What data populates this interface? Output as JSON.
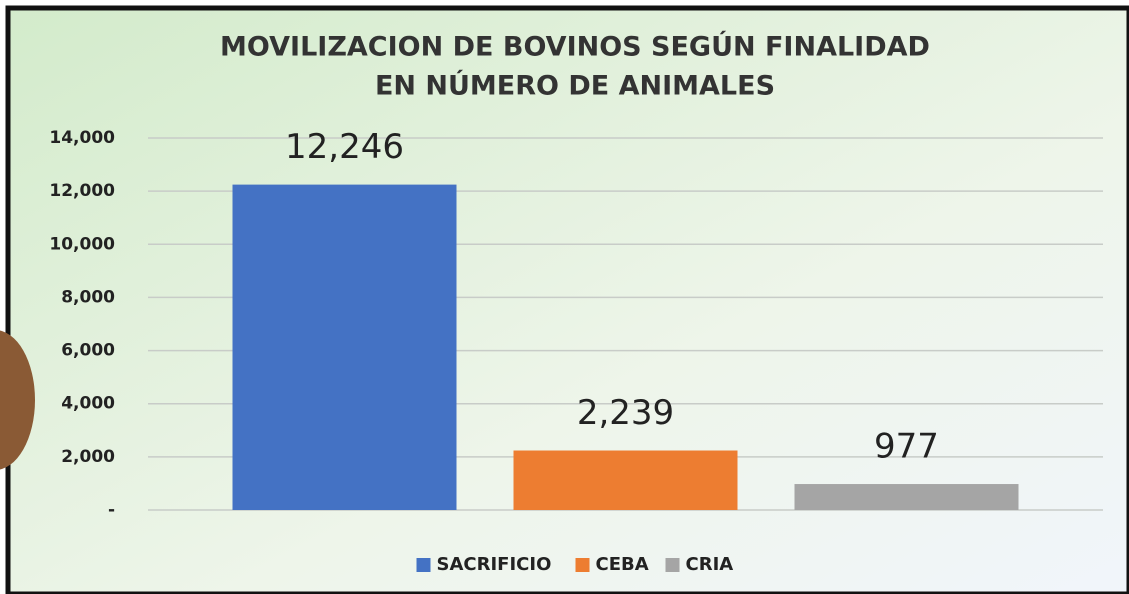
{
  "chart_data": {
    "type": "bar",
    "title": [
      "MOVILIZACION DE BOVINOS SEGÚN FINALIDAD",
      "EN NÚMERO DE ANIMALES"
    ],
    "categories": [
      null
    ],
    "series": [
      {
        "name": "SACRIFICIO",
        "color": "#4472c4",
        "values": [
          12246
        ],
        "value_labels": [
          "12,246"
        ]
      },
      {
        "name": "CEBA",
        "color": "#ed7d31",
        "values": [
          2239
        ],
        "value_labels": [
          "2,239"
        ]
      },
      {
        "name": "CRIA",
        "color": "#a5a5a5",
        "values": [
          977
        ],
        "value_labels": [
          "977"
        ]
      }
    ],
    "ylim": [
      0,
      14000
    ],
    "yticks": [
      {
        "value": 0,
        "label": "-"
      },
      {
        "value": 2000,
        "label": "2,000"
      },
      {
        "value": 4000,
        "label": "4,000"
      },
      {
        "value": 6000,
        "label": "6,000"
      },
      {
        "value": 8000,
        "label": "8,000"
      },
      {
        "value": 10000,
        "label": "10,000"
      },
      {
        "value": 12000,
        "label": "12,000"
      },
      {
        "value": 14000,
        "label": "14,000"
      }
    ],
    "grid": true,
    "legend": "bottom"
  }
}
